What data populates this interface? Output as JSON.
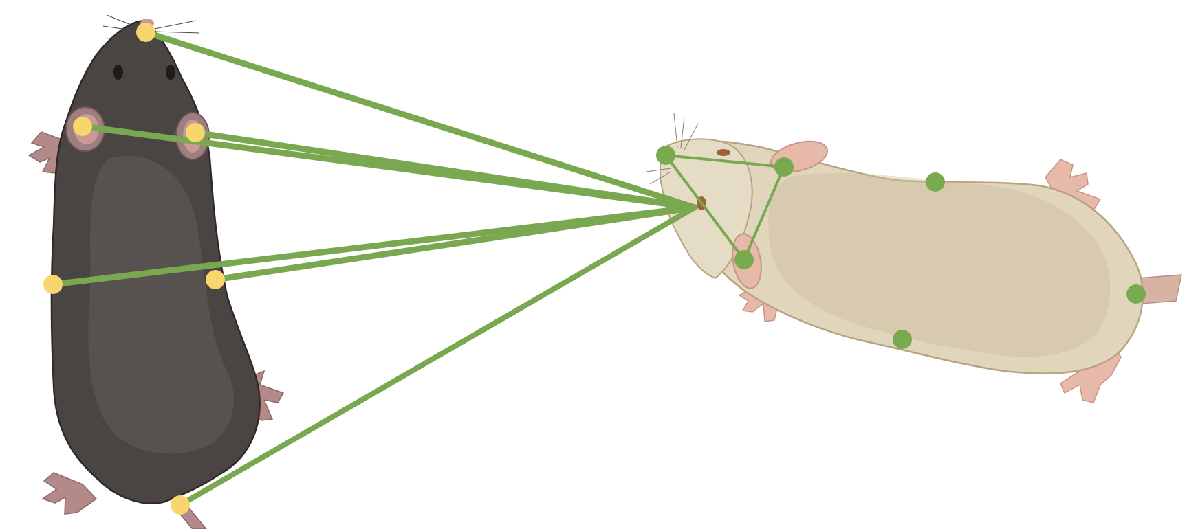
{
  "colors": {
    "background": "#ffffff",
    "connection_line": "#7aa851",
    "dark_mouse_keypoint": "#f9d56e",
    "light_mouse_keypoint": "#79aa50",
    "dark_mouse_fur": "#4a4542",
    "dark_mouse_fur_highlight": "#57524f",
    "dark_mouse_outline": "#2e2a28",
    "light_mouse_fur": "#e1d6bc",
    "light_mouse_fur_shade": "#cbbd9f",
    "light_mouse_outline": "#b9a27f",
    "pink_skin": "#b4898a",
    "pink_skin_light": "#e6b9a8"
  },
  "icons": {
    "dark_mouse": "black-mouse-top-view-icon",
    "light_mouse": "beige-mouse-top-view-icon"
  }
}
